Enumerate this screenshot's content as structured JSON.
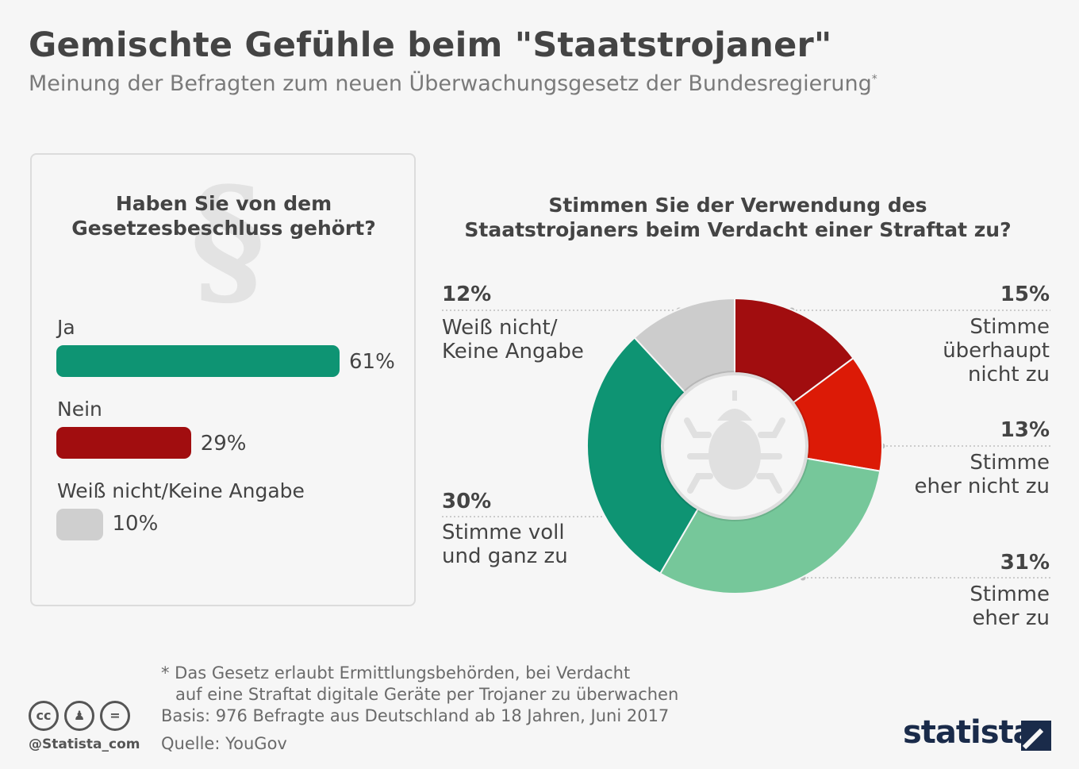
{
  "header": {
    "title": "Gemischte Gefühle beim \"Staatstrojaner\"",
    "subtitle": "Meinung der Befragten zum neuen Überwachungsgesetz der Bundesregierung",
    "subtitle_mark": "*"
  },
  "left_panel": {
    "question": [
      "Haben Sie von dem",
      "Gesetzesbeschluss gehört?"
    ],
    "icon": "paragraph-icon"
  },
  "right_panel": {
    "question": [
      "Stimmen Sie der Verwendung des",
      "Staatstrojaners beim Verdacht einer Straftat zu?"
    ],
    "center_icon": "bug-icon"
  },
  "chart_data": [
    {
      "type": "bar",
      "orientation": "horizontal",
      "categories": [
        "Ja",
        "Nein",
        "Weiß nicht/Keine Angabe"
      ],
      "values": [
        61,
        29,
        10
      ],
      "value_labels": [
        "61%",
        "29%",
        "10%"
      ],
      "colors": [
        "#0e9473",
        "#a10d0f",
        "#cfcfcf"
      ]
    },
    {
      "type": "pie",
      "donut": true,
      "slices": [
        {
          "label": "Stimme überhaupt nicht zu",
          "value": 15,
          "pct_label": "15%",
          "color": "#a10d0f"
        },
        {
          "label": "Stimme eher nicht zu",
          "value": 13,
          "pct_label": "13%",
          "color": "#dc1a06"
        },
        {
          "label": "Stimme eher zu",
          "value": 31,
          "pct_label": "31%",
          "color": "#76c79a"
        },
        {
          "label": "Stimme voll und ganz zu",
          "value": 30,
          "pct_label": "30%",
          "color": "#0e9473"
        },
        {
          "label": "Weiß nicht/ Keine Angabe",
          "value": 12,
          "pct_label": "12%",
          "color": "#cccccc"
        }
      ]
    }
  ],
  "donut_text": {
    "s15": [
      "Stimme",
      "überhaupt",
      "nicht zu"
    ],
    "s13": [
      "Stimme",
      "eher nicht zu"
    ],
    "s31": [
      "Stimme",
      "eher zu"
    ],
    "s30": [
      "Stimme voll",
      "und ganz zu"
    ],
    "s12": [
      "Weiß nicht/",
      "Keine Angabe"
    ]
  },
  "footer": {
    "note_line1": "* Das Gesetz erlaubt Ermittlungsbehörden, bei Verdacht",
    "note_line2": "auf eine Straftat digitale Geräte per Trojaner zu überwachen",
    "basis": "Basis: 976 Befragte aus Deutschland ab 18 Jahren, Juni 2017",
    "source": "Quelle: YouGov",
    "handle": "@Statista_com",
    "logo": "statista",
    "license_icons": [
      "cc-icon",
      "by-icon",
      "nd-icon"
    ]
  }
}
